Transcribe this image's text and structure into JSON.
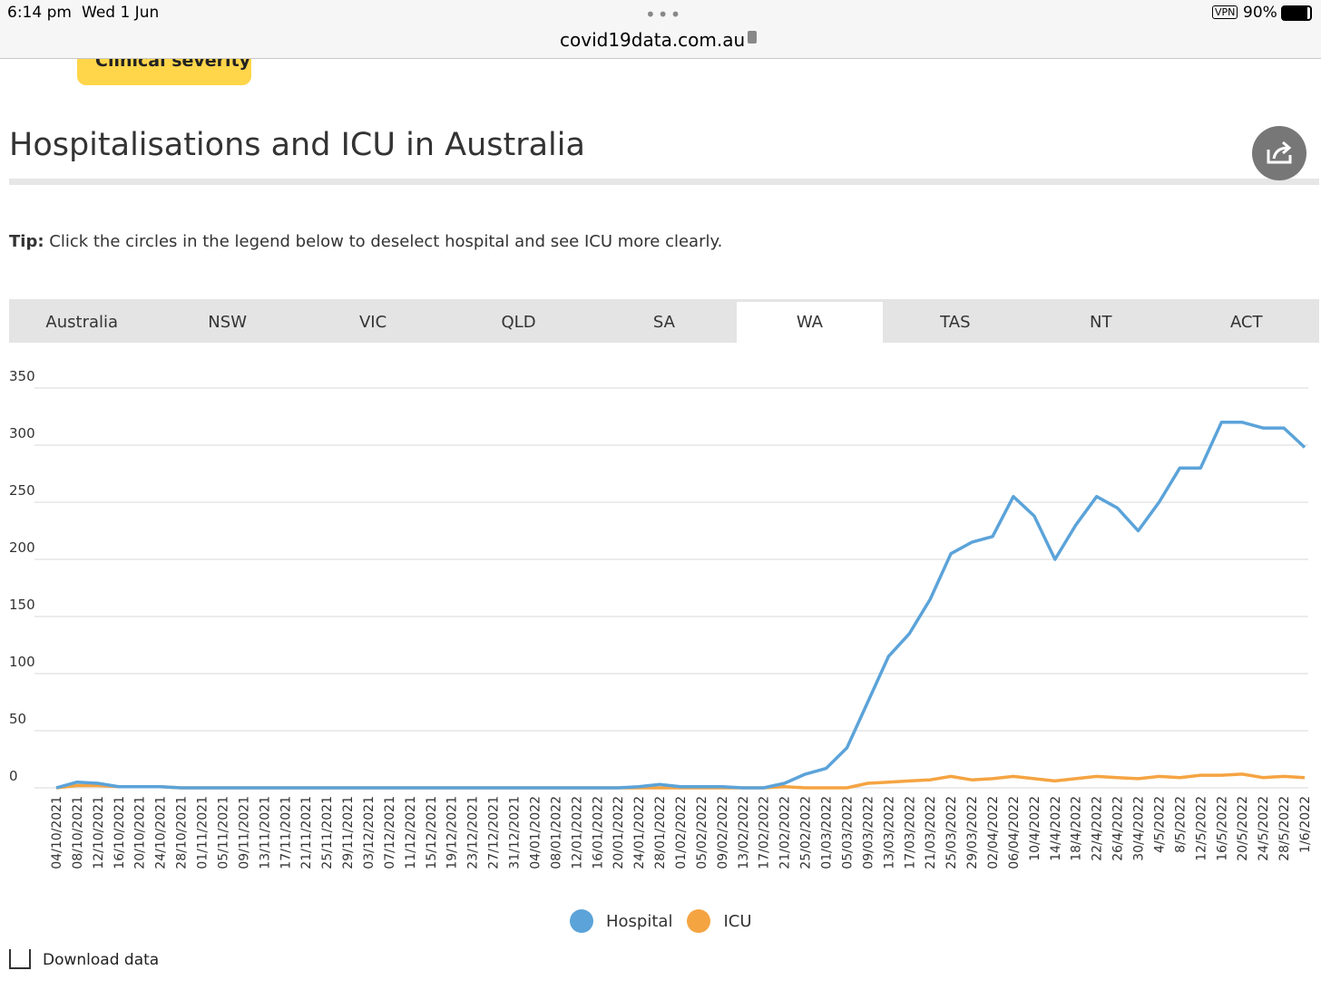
{
  "status_bar": {
    "time": "6:14 pm",
    "date": "Wed 1 Jun",
    "vpn": "VPN",
    "battery": "90%"
  },
  "address_bar": {
    "url": "covid19data.com.au"
  },
  "header": {
    "button": "Clinical severity",
    "title": "Hospitalisations and ICU in Australia"
  },
  "tip": {
    "label": "Tip:",
    "text": "Click the circles in the legend below to deselect hospital and see ICU more clearly."
  },
  "tabs": [
    "Australia",
    "NSW",
    "VIC",
    "QLD",
    "SA",
    "WA",
    "TAS",
    "NT",
    "ACT"
  ],
  "active_tab": 5,
  "chart_data": {
    "type": "line",
    "categories": [
      "04/10/2021",
      "08/10/2021",
      "12/10/2021",
      "16/10/2021",
      "20/10/2021",
      "24/10/2021",
      "28/10/2021",
      "01/11/2021",
      "05/11/2021",
      "09/11/2021",
      "13/11/2021",
      "17/11/2021",
      "21/11/2021",
      "25/11/2021",
      "29/11/2021",
      "03/12/2021",
      "07/12/2021",
      "11/12/2021",
      "15/12/2021",
      "19/12/2021",
      "23/12/2021",
      "27/12/2021",
      "31/12/2021",
      "04/01/2022",
      "08/01/2022",
      "12/01/2022",
      "16/01/2022",
      "20/01/2022",
      "24/01/2022",
      "28/01/2022",
      "01/02/2022",
      "05/02/2022",
      "09/02/2022",
      "13/02/2022",
      "17/02/2022",
      "21/02/2022",
      "25/02/2022",
      "01/03/2022",
      "05/03/2022",
      "09/03/2022",
      "13/03/2022",
      "17/03/2022",
      "21/03/2022",
      "25/03/2022",
      "29/03/2022",
      "02/04/2022",
      "06/04/2022",
      "10/4/2022",
      "14/4/2022",
      "18/4/2022",
      "22/4/2022",
      "26/4/2022",
      "30/4/2022",
      "4/5/2022",
      "8/5/2022",
      "12/5/2022",
      "16/5/2022",
      "20/5/2022",
      "24/5/2022",
      "28/5/2022",
      "1/6/2022"
    ],
    "series": [
      {
        "name": "Hospital",
        "color": "#5ba3d9",
        "values": [
          0,
          5,
          4,
          1,
          1,
          1,
          0,
          0,
          0,
          0,
          0,
          0,
          0,
          0,
          0,
          0,
          0,
          0,
          0,
          0,
          0,
          0,
          0,
          0,
          0,
          0,
          0,
          0,
          1,
          3,
          1,
          1,
          1,
          0,
          0,
          4,
          12,
          17,
          35,
          75,
          115,
          135,
          165,
          205,
          215,
          220,
          255,
          238,
          200,
          230,
          255,
          245,
          225,
          250,
          280,
          280,
          320,
          320,
          315,
          315,
          298
        ]
      },
      {
        "name": "ICU",
        "color": "#f5a442",
        "values": [
          0,
          2,
          2,
          1,
          1,
          1,
          0,
          0,
          0,
          0,
          0,
          0,
          0,
          0,
          0,
          0,
          0,
          0,
          0,
          0,
          0,
          0,
          0,
          0,
          0,
          0,
          0,
          0,
          0,
          0,
          0,
          0,
          0,
          0,
          0,
          1,
          0,
          0,
          0,
          4,
          5,
          6,
          7,
          10,
          7,
          8,
          10,
          8,
          6,
          8,
          10,
          9,
          8,
          10,
          9,
          11,
          11,
          12,
          9,
          10,
          9
        ]
      }
    ],
    "ylim": [
      0,
      350
    ],
    "yticks": [
      0,
      50,
      100,
      150,
      200,
      250,
      300,
      350
    ],
    "grid": true
  },
  "footer": {
    "download": "Download data"
  }
}
